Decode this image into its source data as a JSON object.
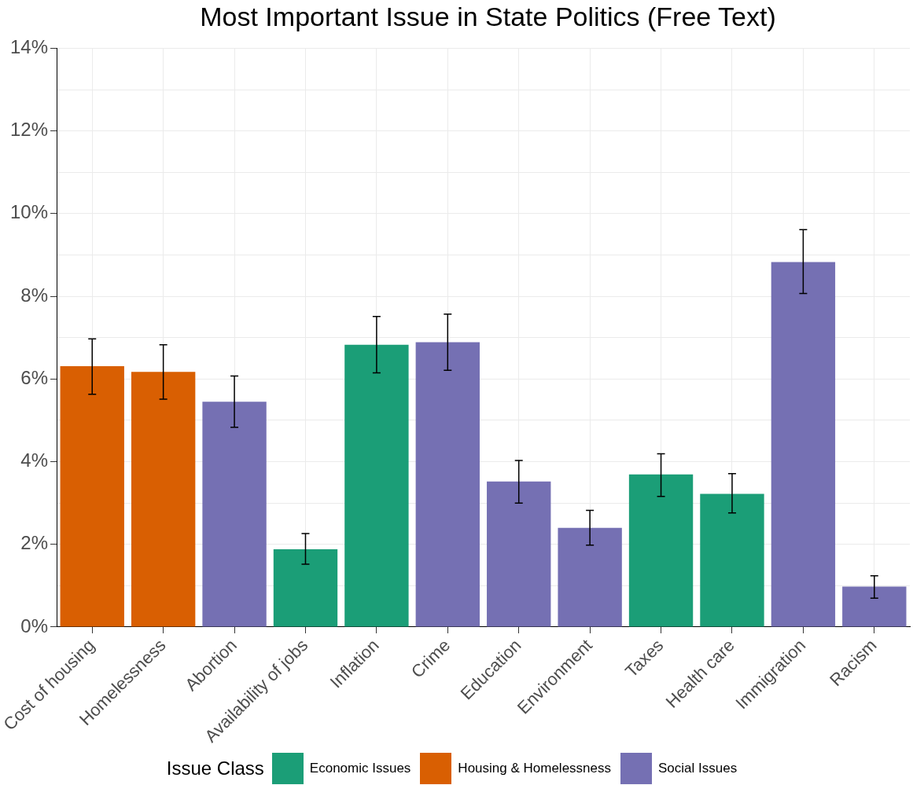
{
  "chart_data": {
    "type": "bar",
    "title": "Most Important Issue in State Politics (Free Text)",
    "legend_title": "Issue Class",
    "categories": [
      "Cost of housing",
      "Homelessness",
      "Abortion",
      "Availability of jobs",
      "Inflation",
      "Crime",
      "Education",
      "Environment",
      "Taxes",
      "Health care",
      "Immigration",
      "Racism"
    ],
    "series": [
      {
        "name": "Economic Issues",
        "color": "#1b9e77",
        "values": [
          null,
          null,
          null,
          1.88,
          6.83,
          null,
          null,
          null,
          3.69,
          3.22,
          null,
          null
        ],
        "errors": [
          null,
          null,
          null,
          [
            1.52,
            2.26
          ],
          [
            6.15,
            7.51
          ],
          null,
          null,
          null,
          [
            3.16,
            4.19
          ],
          [
            2.76,
            3.71
          ],
          null,
          null
        ]
      },
      {
        "name": "Housing & Homelessness",
        "color": "#d95f02",
        "values": [
          6.31,
          6.17,
          null,
          null,
          null,
          null,
          null,
          null,
          null,
          null,
          null,
          null
        ],
        "errors": [
          [
            5.63,
            6.97
          ],
          [
            5.51,
            6.83
          ],
          null,
          null,
          null,
          null,
          null,
          null,
          null,
          null,
          null,
          null
        ]
      },
      {
        "name": "Social Issues",
        "color": "#7570b3",
        "values": [
          null,
          null,
          5.45,
          null,
          null,
          6.89,
          3.52,
          2.4,
          null,
          null,
          8.83,
          0.98
        ],
        "errors": [
          null,
          null,
          [
            4.83,
            6.07
          ],
          null,
          null,
          [
            6.21,
            7.57
          ],
          [
            3.0,
            4.03
          ],
          [
            1.98,
            2.82
          ],
          null,
          null,
          [
            8.07,
            9.61
          ],
          [
            0.7,
            1.24
          ]
        ]
      }
    ],
    "ylim": [
      0,
      14
    ],
    "yticks": [
      {
        "value": 0,
        "label": "0%"
      },
      {
        "value": 1,
        "label": null
      },
      {
        "value": 2,
        "label": "2%"
      },
      {
        "value": 3,
        "label": null
      },
      {
        "value": 4,
        "label": "4%"
      },
      {
        "value": 5,
        "label": null
      },
      {
        "value": 6,
        "label": "6%"
      },
      {
        "value": 7,
        "label": null
      },
      {
        "value": 8,
        "label": "8%"
      },
      {
        "value": 9,
        "label": null
      },
      {
        "value": 10,
        "label": "10%"
      },
      {
        "value": 11,
        "label": null
      },
      {
        "value": 12,
        "label": "12%"
      },
      {
        "value": 13,
        "label": null
      },
      {
        "value": 14,
        "label": "14%"
      }
    ],
    "grid": true,
    "legend": "bottom"
  }
}
